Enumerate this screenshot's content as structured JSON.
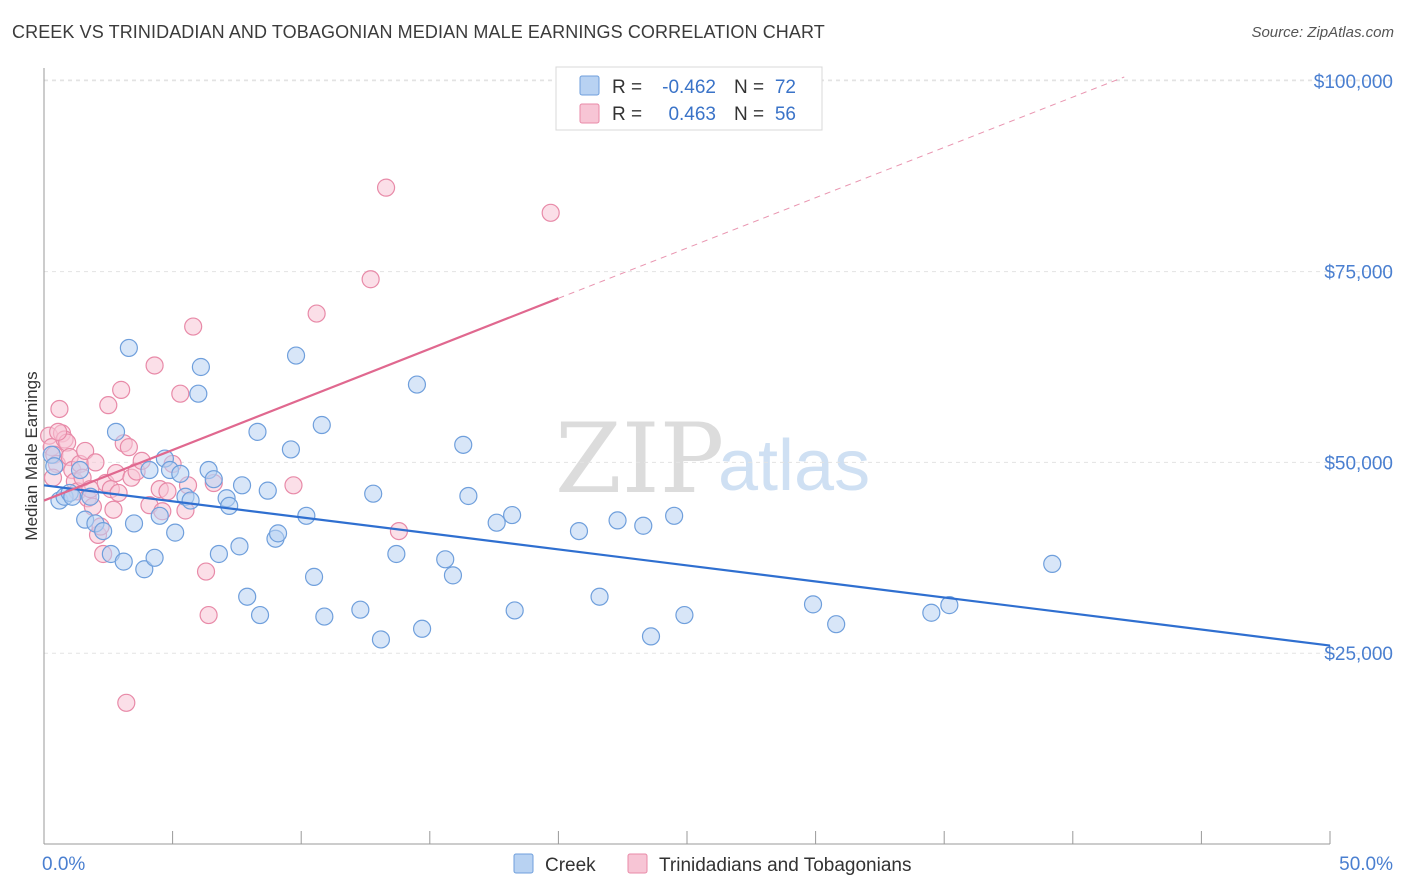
{
  "header": {
    "title": "CREEK VS TRINIDADIAN AND TOBAGONIAN MEDIAN MALE EARNINGS CORRELATION CHART",
    "source": "Source: ZipAtlas.com"
  },
  "watermark": {
    "zip": "ZIP",
    "atlas": "atlas"
  },
  "colors": {
    "creek_fill": "#b8d2f2",
    "creek_stroke": "#6f9fdc",
    "creek_line": "#2f6fd0",
    "trin_fill": "#f7c5d5",
    "trin_stroke": "#e88aa8",
    "trin_line": "#e0688f",
    "grid": "#e3e3e3",
    "axis_label": "#4a7fd0"
  },
  "legend": {
    "rows": [
      {
        "r_label": "R =",
        "r_value": "-0.462",
        "n_label": "N =",
        "n_value": "72"
      },
      {
        "r_label": "R =",
        "r_value": "0.463",
        "n_label": "N =",
        "n_value": "56"
      }
    ]
  },
  "chart_data": {
    "type": "scatter",
    "title": "CREEK VS TRINIDADIAN AND TOBAGONIAN MEDIAN MALE EARNINGS CORRELATION CHART",
    "xlabel": "",
    "ylabel": "Median Male Earnings",
    "xlim": [
      0,
      50
    ],
    "ylim": [
      0,
      105000
    ],
    "y_ticks": [
      {
        "value": 25000,
        "label": "$25,000"
      },
      {
        "value": 50000,
        "label": "$50,000"
      },
      {
        "value": 75000,
        "label": "$75,000"
      },
      {
        "value": 100000,
        "label": "$100,000"
      }
    ],
    "x_tick_labels": [
      {
        "value": 0,
        "label": "0.0%"
      },
      {
        "value": 50,
        "label": "50.0%"
      }
    ],
    "grid": true,
    "legend_position": "top-center",
    "series": [
      {
        "name": "Creek",
        "r": -0.462,
        "n": 72,
        "trend": {
          "x": [
            0,
            50
          ],
          "y": [
            47000,
            26000
          ],
          "extension": null
        },
        "points": [
          [
            0.3,
            51000
          ],
          [
            0.4,
            49500
          ],
          [
            0.6,
            45000
          ],
          [
            0.8,
            45500
          ],
          [
            1.0,
            46000
          ],
          [
            1.1,
            45500
          ],
          [
            1.4,
            49000
          ],
          [
            1.6,
            42500
          ],
          [
            1.8,
            45500
          ],
          [
            2.0,
            42000
          ],
          [
            2.3,
            41000
          ],
          [
            2.6,
            38000
          ],
          [
            2.8,
            54000
          ],
          [
            3.1,
            37000
          ],
          [
            3.3,
            65000
          ],
          [
            3.5,
            42000
          ],
          [
            3.9,
            36000
          ],
          [
            4.1,
            49000
          ],
          [
            4.3,
            37500
          ],
          [
            4.5,
            43000
          ],
          [
            4.7,
            50500
          ],
          [
            4.9,
            49000
          ],
          [
            5.1,
            40800
          ],
          [
            5.3,
            48500
          ],
          [
            5.5,
            45500
          ],
          [
            5.7,
            45000
          ],
          [
            6.0,
            59000
          ],
          [
            6.1,
            62500
          ],
          [
            6.4,
            49000
          ],
          [
            6.6,
            47800
          ],
          [
            6.8,
            38000
          ],
          [
            7.1,
            45300
          ],
          [
            7.2,
            44300
          ],
          [
            7.6,
            39000
          ],
          [
            7.7,
            47000
          ],
          [
            7.9,
            32400
          ],
          [
            8.3,
            54000
          ],
          [
            8.4,
            30000
          ],
          [
            8.7,
            46300
          ],
          [
            9.0,
            40000
          ],
          [
            9.1,
            40700
          ],
          [
            9.6,
            51700
          ],
          [
            9.8,
            64000
          ],
          [
            10.2,
            43000
          ],
          [
            10.5,
            35000
          ],
          [
            10.8,
            54900
          ],
          [
            10.9,
            29800
          ],
          [
            12.3,
            30700
          ],
          [
            12.8,
            45900
          ],
          [
            13.1,
            26800
          ],
          [
            13.7,
            38000
          ],
          [
            14.5,
            60200
          ],
          [
            14.7,
            28200
          ],
          [
            15.6,
            37300
          ],
          [
            15.9,
            35200
          ],
          [
            16.3,
            52300
          ],
          [
            16.5,
            45600
          ],
          [
            17.6,
            42100
          ],
          [
            18.2,
            43100
          ],
          [
            18.3,
            30600
          ],
          [
            20.8,
            41000
          ],
          [
            21.6,
            32400
          ],
          [
            22.3,
            42400
          ],
          [
            23.3,
            41700
          ],
          [
            23.6,
            27200
          ],
          [
            24.5,
            43000
          ],
          [
            24.9,
            30000
          ],
          [
            29.9,
            31400
          ],
          [
            30.8,
            28800
          ],
          [
            34.5,
            30300
          ],
          [
            35.2,
            31300
          ],
          [
            39.2,
            36700
          ]
        ]
      },
      {
        "name": "Trinidadians and Tobagonians",
        "r": 0.463,
        "n": 56,
        "trend": {
          "x": [
            0,
            20
          ],
          "y": [
            45000,
            71500
          ],
          "extension": {
            "x": [
              20,
              42
            ],
            "y": [
              71500,
              100500
            ]
          }
        },
        "points": [
          [
            0.2,
            53500
          ],
          [
            0.3,
            52000
          ],
          [
            0.4,
            51000
          ],
          [
            0.5,
            49800
          ],
          [
            0.6,
            57000
          ],
          [
            0.7,
            53800
          ],
          [
            0.8,
            53000
          ],
          [
            0.9,
            52600
          ],
          [
            1.0,
            50700
          ],
          [
            1.1,
            49000
          ],
          [
            1.2,
            47500
          ],
          [
            1.3,
            46200
          ],
          [
            1.4,
            49800
          ],
          [
            1.5,
            48000
          ],
          [
            1.6,
            51500
          ],
          [
            1.7,
            45300
          ],
          [
            1.8,
            46500
          ],
          [
            1.9,
            44200
          ],
          [
            2.0,
            50000
          ],
          [
            2.1,
            40500
          ],
          [
            2.2,
            41600
          ],
          [
            2.3,
            38000
          ],
          [
            2.4,
            47300
          ],
          [
            2.5,
            57500
          ],
          [
            2.6,
            46500
          ],
          [
            2.7,
            43800
          ],
          [
            2.8,
            48600
          ],
          [
            2.9,
            46000
          ],
          [
            3.0,
            59500
          ],
          [
            3.1,
            52500
          ],
          [
            3.2,
            18500
          ],
          [
            3.3,
            52000
          ],
          [
            3.4,
            48000
          ],
          [
            3.6,
            48800
          ],
          [
            3.8,
            50200
          ],
          [
            4.1,
            44400
          ],
          [
            4.3,
            62700
          ],
          [
            4.5,
            46500
          ],
          [
            4.6,
            43600
          ],
          [
            4.8,
            46200
          ],
          [
            5.0,
            49800
          ],
          [
            5.3,
            59000
          ],
          [
            5.5,
            43700
          ],
          [
            5.6,
            47000
          ],
          [
            5.8,
            67800
          ],
          [
            6.3,
            35700
          ],
          [
            6.4,
            30000
          ],
          [
            6.6,
            47300
          ],
          [
            9.7,
            47000
          ],
          [
            10.6,
            69500
          ],
          [
            12.7,
            74000
          ],
          [
            13.3,
            86000
          ],
          [
            13.8,
            41000
          ],
          [
            19.7,
            82700
          ],
          [
            0.35,
            48000
          ],
          [
            0.55,
            54000
          ]
        ]
      }
    ]
  }
}
